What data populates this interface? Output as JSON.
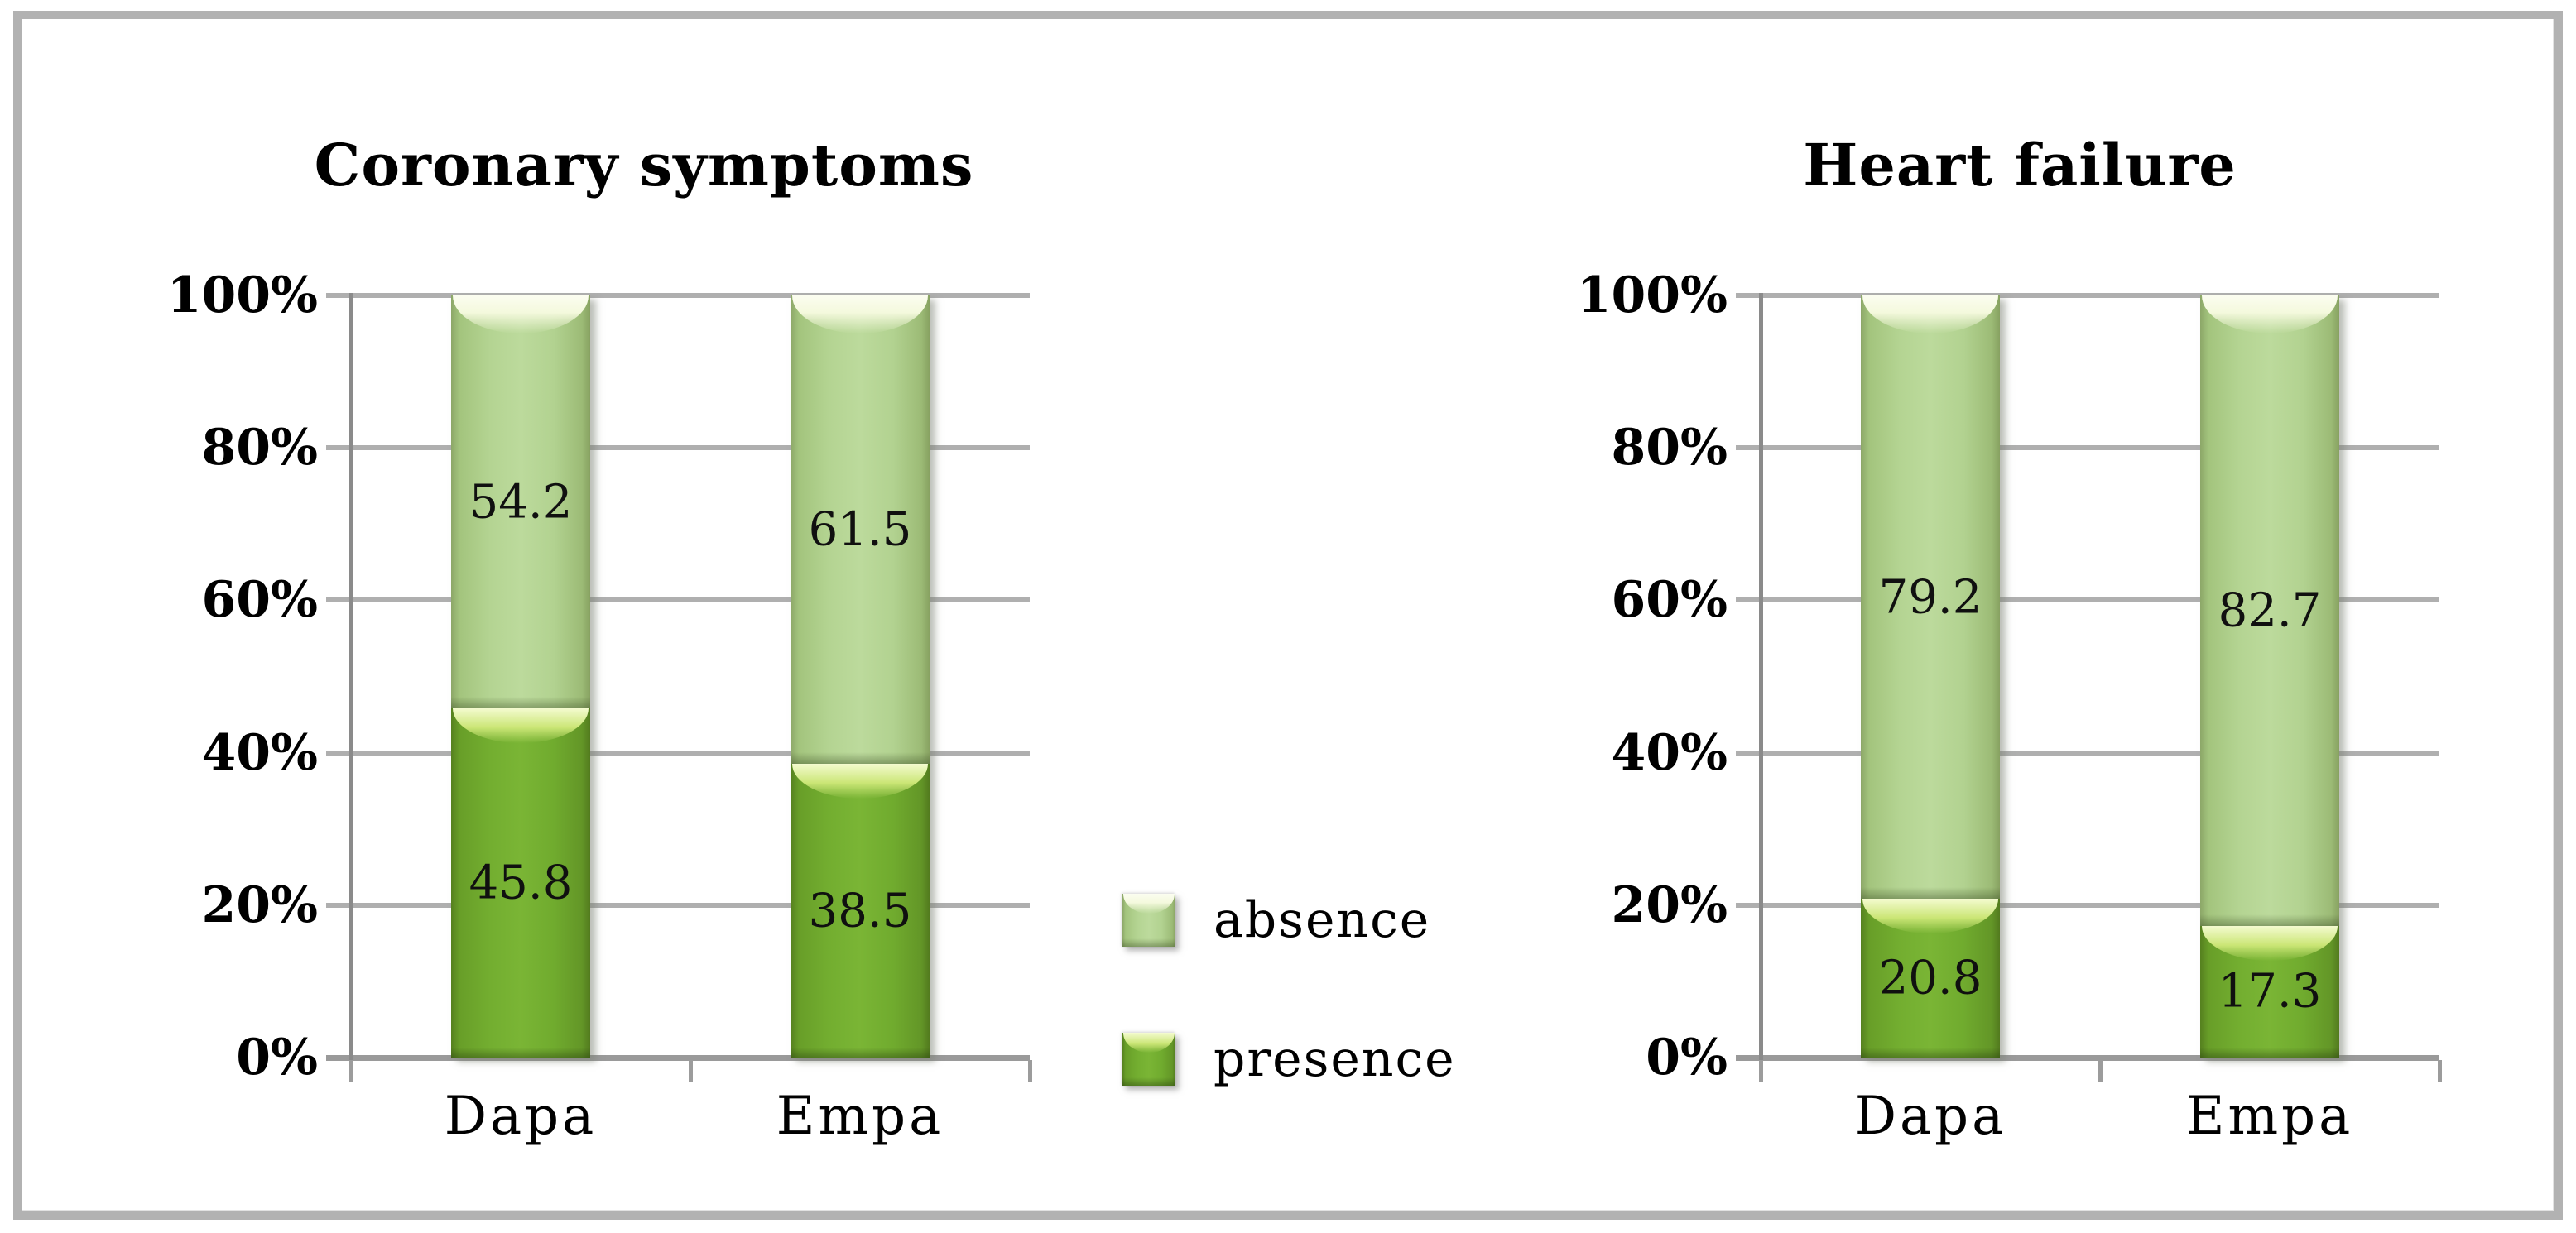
{
  "figure": {
    "background": "#ffffff",
    "border_color": "#b2b2b2"
  },
  "colors": {
    "absence_fill": "#b4d492",
    "absence_edge": "#8ca768",
    "absence_highlight": "#fbfdf0",
    "presence_fill": "#73ae30",
    "presence_edge": "#55801f",
    "presence_highlight": "#f4fbd0",
    "gridline": "#afafaf",
    "axis_line": "#8a8a8a",
    "text": "#000000"
  },
  "legend": {
    "items": [
      {
        "label": "absence",
        "swatch": "absence-green-glossy"
      },
      {
        "label": "presence",
        "swatch": "presence-green-glossy"
      }
    ]
  },
  "chart_data": [
    {
      "type": "bar",
      "stacked": true,
      "title": "Coronary symptoms",
      "categories": [
        "Dapa",
        "Empa"
      ],
      "series": [
        {
          "name": "presence",
          "values": [
            45.8,
            38.5
          ]
        },
        {
          "name": "absence",
          "values": [
            54.2,
            61.5
          ]
        }
      ],
      "xlabel": "",
      "ylabel": "",
      "ylim": [
        0,
        100
      ],
      "yticks": [
        "0%",
        "20%",
        "40%",
        "60%",
        "80%",
        "100%"
      ],
      "grid": true,
      "value_labels": "segment-center",
      "legend_position": "right-of-chart-shared"
    },
    {
      "type": "bar",
      "stacked": true,
      "title": "Heart failure",
      "categories": [
        "Dapa",
        "Empa"
      ],
      "series": [
        {
          "name": "presence",
          "values": [
            20.8,
            17.3
          ]
        },
        {
          "name": "absence",
          "values": [
            79.2,
            82.7
          ]
        }
      ],
      "xlabel": "",
      "ylabel": "",
      "ylim": [
        0,
        100
      ],
      "yticks": [
        "0%",
        "20%",
        "40%",
        "60%",
        "80%",
        "100%"
      ],
      "grid": true,
      "value_labels": "segment-center",
      "legend_position": "left-of-chart-shared"
    }
  ]
}
